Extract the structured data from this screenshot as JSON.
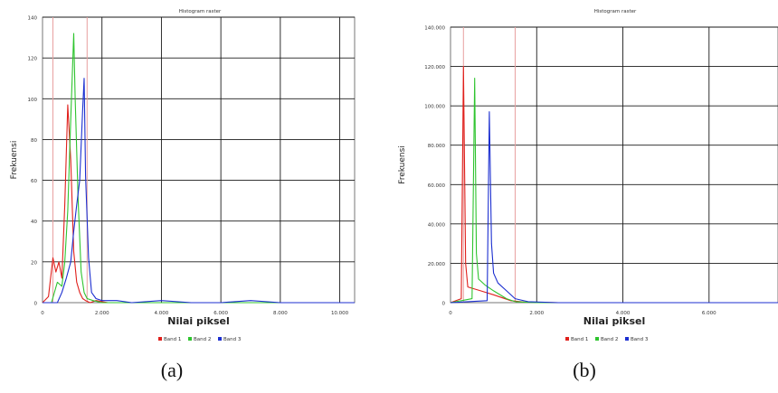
{
  "figure": {
    "captions": [
      "(a)",
      "(b)"
    ]
  },
  "colors": {
    "band1": "#e0201c",
    "band2": "#2fc42f",
    "band3": "#1c2fd0",
    "grid": "#1a1a1a",
    "minmax_marker": "#e8a0a0"
  },
  "chart_data": [
    {
      "type": "line",
      "title": "Histogram raster",
      "xlabel": "Nilai piksel",
      "ylabel": "Frekuensi",
      "xlim": [
        0,
        10500
      ],
      "ylim": [
        0,
        140
      ],
      "xticks": [
        0,
        2000,
        4000,
        6000,
        8000,
        10000
      ],
      "xtick_labels": [
        "0",
        "2.000",
        "4.000",
        "6.000",
        "8.000",
        "10.000"
      ],
      "yticks": [
        0,
        20,
        40,
        60,
        80,
        100,
        120,
        140
      ],
      "ytick_labels": [
        "0",
        "20",
        "40",
        "60",
        "80",
        "100",
        "120",
        "140"
      ],
      "grid": true,
      "legend_position": "bottom",
      "minmax_markers": [
        350,
        1500
      ],
      "series": [
        {
          "name": "Band 1",
          "color_key": "band1",
          "x": [
            0,
            200,
            350,
            450,
            550,
            650,
            750,
            850,
            950,
            1050,
            1150,
            1250,
            1350,
            1450,
            1600,
            1800,
            2200,
            3000,
            5000,
            8000,
            10500
          ],
          "y": [
            0,
            3,
            22,
            15,
            20,
            12,
            48,
            97,
            70,
            25,
            10,
            5,
            2,
            1,
            0,
            1,
            0,
            0,
            0,
            0,
            0
          ]
        },
        {
          "name": "Band 2",
          "color_key": "band2",
          "x": [
            0,
            300,
            500,
            650,
            750,
            850,
            950,
            1050,
            1100,
            1200,
            1300,
            1400,
            1500,
            1700,
            2000,
            3000,
            5000,
            8000,
            10500
          ],
          "y": [
            0,
            0,
            10,
            8,
            20,
            45,
            90,
            132,
            100,
            50,
            15,
            5,
            2,
            1,
            0,
            0,
            0,
            0,
            0
          ]
        },
        {
          "name": "Band 3",
          "color_key": "band3",
          "x": [
            0,
            500,
            650,
            800,
            950,
            1050,
            1150,
            1250,
            1350,
            1400,
            1450,
            1550,
            1650,
            1800,
            2000,
            2500,
            3000,
            4000,
            5000,
            6000,
            7000,
            8000,
            9000,
            10500
          ],
          "y": [
            0,
            0,
            5,
            12,
            20,
            35,
            48,
            60,
            95,
            110,
            62,
            22,
            5,
            2,
            1,
            1,
            0,
            1,
            0,
            0,
            1,
            0,
            0,
            0
          ]
        }
      ]
    },
    {
      "type": "line",
      "title": "Histogram raster",
      "xlabel": "Nilai piksel",
      "ylabel": "Frekuensi",
      "xlim": [
        0,
        7600
      ],
      "ylim": [
        0,
        140000
      ],
      "xticks": [
        0,
        2000,
        4000,
        6000
      ],
      "xtick_labels": [
        "0",
        "2.000",
        "4.000",
        "6.000"
      ],
      "yticks": [
        0,
        20000,
        40000,
        60000,
        80000,
        100000,
        120000,
        140000
      ],
      "ytick_labels": [
        "0",
        "20.000",
        "40.000",
        "60.000",
        "80.000",
        "100.000",
        "120.000",
        "140.000"
      ],
      "grid": true,
      "legend_position": "bottom",
      "minmax_markers": [
        300,
        1500
      ],
      "series": [
        {
          "name": "Band 1",
          "color_key": "band1",
          "x": [
            0,
            250,
            300,
            350,
            400,
            700,
            1000,
            1400,
            1700,
            2500,
            7600
          ],
          "y": [
            0,
            2000,
            120000,
            20000,
            8000,
            6000,
            4000,
            1000,
            300,
            0,
            0
          ]
        },
        {
          "name": "Band 2",
          "color_key": "band2",
          "x": [
            0,
            500,
            560,
            600,
            650,
            800,
            1000,
            1300,
            1500,
            2000,
            7600
          ],
          "y": [
            0,
            2000,
            114000,
            25000,
            12000,
            9000,
            6000,
            2000,
            500,
            0,
            0
          ]
        },
        {
          "name": "Band 3",
          "color_key": "band3",
          "x": [
            0,
            850,
            900,
            950,
            1000,
            1100,
            1300,
            1500,
            1800,
            2500,
            7600
          ],
          "y": [
            0,
            1000,
            97000,
            30000,
            15000,
            10000,
            6000,
            2000,
            500,
            0,
            0
          ]
        }
      ]
    }
  ]
}
